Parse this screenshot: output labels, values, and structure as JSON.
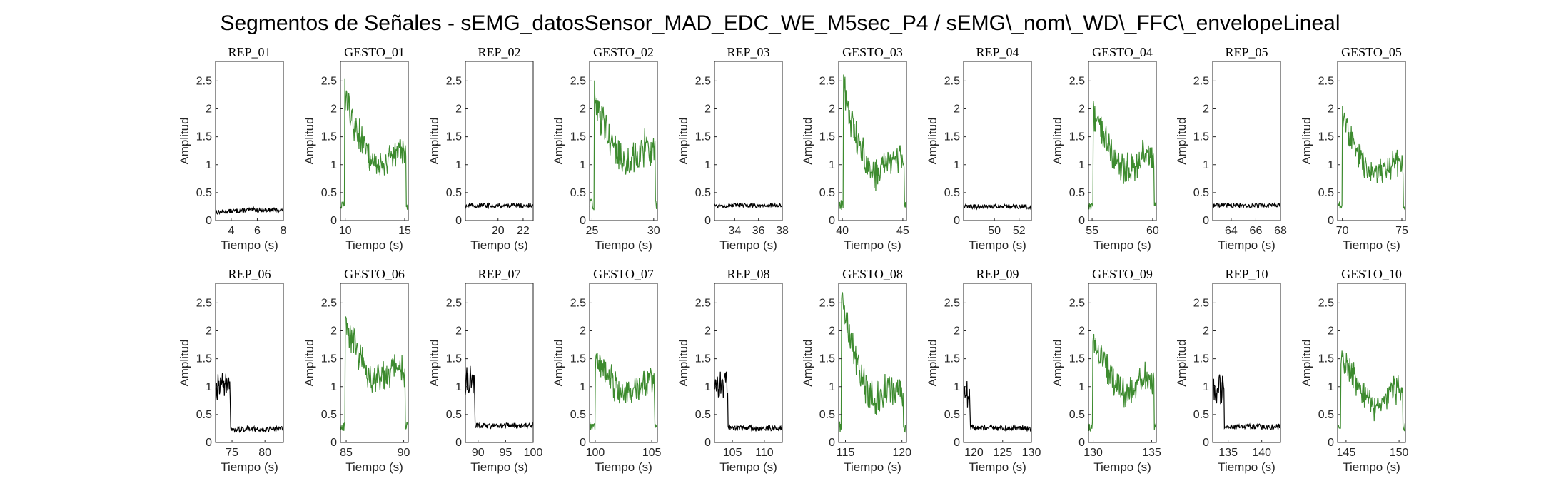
{
  "chart_data": {
    "type": "line",
    "title": "Segmentos de Señales - sEMG_datosSensor_MAD_EDC_WE_M5sec_P4 / sEMG\\_nom\\_WD\\_FFC\\_envelopeLineal",
    "xlabel": "Tiempo (s)",
    "ylabel": "Amplitud",
    "ylim": [
      0,
      2.85
    ],
    "yticks": [
      0,
      0.5,
      1,
      1.5,
      2,
      2.5
    ],
    "grid": false,
    "colors": {
      "rep": "#000000",
      "gesto": "#3d8b2f",
      "axis": "#262626"
    },
    "panels": [
      {
        "title": "REP_01",
        "kind": "rep",
        "xlim": [
          2.8,
          8
        ],
        "xticks": [
          4,
          6,
          8
        ],
        "profile": {
          "base": 0.19,
          "start": 0.15,
          "noise": 0.04
        }
      },
      {
        "title": "GESTO_01",
        "kind": "gesto",
        "xlim": [
          9.6,
          15.3
        ],
        "xticks": [
          10,
          15
        ],
        "profile": {
          "base": 1.1,
          "peak": 2.35,
          "noise": 0.22,
          "onset": 0.06,
          "offset": 0.97
        }
      },
      {
        "title": "REP_02",
        "kind": "rep",
        "xlim": [
          17.4,
          22.8
        ],
        "xticks": [
          20,
          22
        ],
        "profile": {
          "base": 0.27,
          "noise": 0.04
        }
      },
      {
        "title": "GESTO_02",
        "kind": "gesto",
        "xlim": [
          24.8,
          30.3
        ],
        "xticks": [
          25,
          30
        ],
        "profile": {
          "base": 1.15,
          "peak": 2.3,
          "noise": 0.25,
          "onset": 0.07,
          "offset": 0.97
        }
      },
      {
        "title": "REP_03",
        "kind": "rep",
        "xlim": [
          32.3,
          38
        ],
        "xticks": [
          34,
          36,
          38
        ],
        "profile": {
          "base": 0.27,
          "noise": 0.04
        }
      },
      {
        "title": "GESTO_03",
        "kind": "gesto",
        "xlim": [
          39.7,
          45.3
        ],
        "xticks": [
          40,
          45
        ],
        "profile": {
          "base": 0.95,
          "peak": 2.45,
          "noise": 0.22,
          "onset": 0.07,
          "offset": 0.97
        }
      },
      {
        "title": "REP_04",
        "kind": "rep",
        "xlim": [
          47.5,
          53
        ],
        "xticks": [
          50,
          52
        ],
        "profile": {
          "base": 0.25,
          "noise": 0.04
        }
      },
      {
        "title": "GESTO_04",
        "kind": "gesto",
        "xlim": [
          54.7,
          60.3
        ],
        "xticks": [
          55,
          60
        ],
        "profile": {
          "base": 1.0,
          "peak": 2.0,
          "noise": 0.22,
          "onset": 0.07,
          "offset": 0.97
        }
      },
      {
        "title": "REP_05",
        "kind": "rep",
        "xlim": [
          62.5,
          68
        ],
        "xticks": [
          64,
          66,
          68
        ],
        "profile": {
          "base": 0.27,
          "noise": 0.04
        }
      },
      {
        "title": "GESTO_05",
        "kind": "gesto",
        "xlim": [
          69.6,
          75.3
        ],
        "xticks": [
          70,
          75
        ],
        "profile": {
          "base": 0.9,
          "peak": 1.95,
          "noise": 0.2,
          "onset": 0.07,
          "offset": 0.97
        }
      },
      {
        "title": "REP_06",
        "kind": "rep",
        "xlim": [
          72.5,
          82.8
        ],
        "xticks": [
          75,
          80
        ],
        "profile": {
          "base": 0.24,
          "burst": 1.0,
          "burst_end": 0.22,
          "noise": 0.05
        }
      },
      {
        "title": "GESTO_06",
        "kind": "gesto",
        "xlim": [
          84.5,
          90.4
        ],
        "xticks": [
          85,
          90
        ],
        "profile": {
          "base": 1.2,
          "peak": 2.15,
          "noise": 0.22,
          "onset": 0.07,
          "offset": 0.95
        }
      },
      {
        "title": "REP_07",
        "kind": "rep",
        "xlim": [
          87.7,
          100
        ],
        "xticks": [
          90,
          95,
          100
        ],
        "profile": {
          "base": 0.3,
          "burst": 1.1,
          "burst_end": 0.14,
          "noise": 0.05
        }
      },
      {
        "title": "GESTO_07",
        "kind": "gesto",
        "xlim": [
          99.5,
          105.5
        ],
        "xticks": [
          100,
          105
        ],
        "profile": {
          "base": 0.95,
          "peak": 1.45,
          "noise": 0.2,
          "onset": 0.08,
          "offset": 0.96
        }
      },
      {
        "title": "REP_08",
        "kind": "rep",
        "xlim": [
          102.2,
          112.8
        ],
        "xticks": [
          105,
          110
        ],
        "profile": {
          "base": 0.26,
          "burst": 1.0,
          "burst_end": 0.2,
          "noise": 0.05
        }
      },
      {
        "title": "GESTO_08",
        "kind": "gesto",
        "xlim": [
          114.4,
          120.4
        ],
        "xticks": [
          115,
          120
        ],
        "profile": {
          "base": 0.85,
          "peak": 2.8,
          "noise": 0.25,
          "onset": 0.04,
          "offset": 0.95
        }
      },
      {
        "title": "REP_09",
        "kind": "rep",
        "xlim": [
          118.2,
          130
        ],
        "xticks": [
          120,
          125,
          130
        ],
        "profile": {
          "base": 0.26,
          "burst": 0.85,
          "burst_end": 0.1,
          "noise": 0.05
        }
      },
      {
        "title": "GESTO_09",
        "kind": "gesto",
        "xlim": [
          129.6,
          135.4
        ],
        "xticks": [
          130,
          135
        ],
        "profile": {
          "base": 1.0,
          "peak": 1.9,
          "noise": 0.2,
          "onset": 0.06,
          "offset": 0.97
        }
      },
      {
        "title": "REP_10",
        "kind": "rep",
        "xlim": [
          132.7,
          142.8
        ],
        "xticks": [
          135,
          140
        ],
        "profile": {
          "base": 0.28,
          "burst": 0.95,
          "burst_end": 0.17,
          "noise": 0.05
        }
      },
      {
        "title": "GESTO_10",
        "kind": "gesto",
        "xlim": [
          144.2,
          150.6
        ],
        "xticks": [
          145,
          150
        ],
        "profile": {
          "base": 0.8,
          "peak": 1.55,
          "noise": 0.2,
          "onset": 0.05,
          "offset": 0.96
        }
      }
    ]
  }
}
